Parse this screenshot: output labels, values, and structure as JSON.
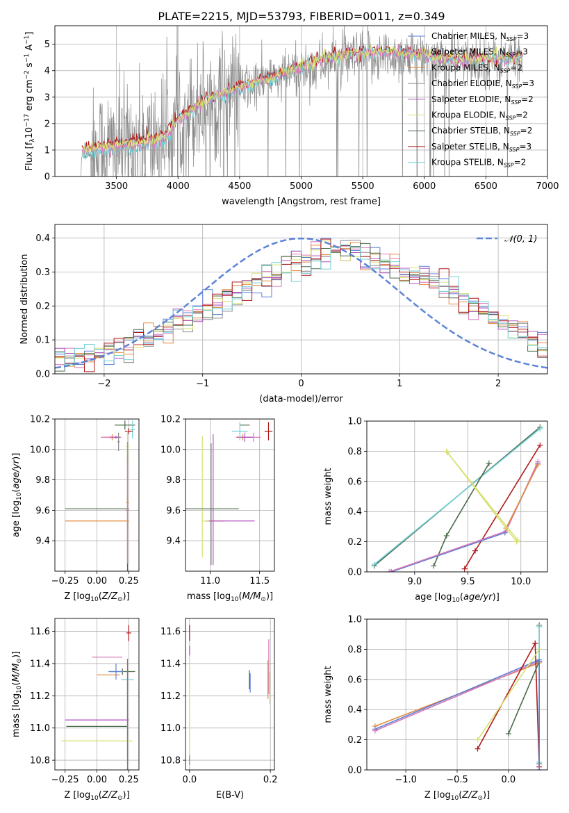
{
  "figure": {
    "title": "PLATE=2215, MJD=53793, FIBERID=0011, z=0.349"
  },
  "palette": {
    "Chabrier MILES": "#5b7fd6",
    "Salpeter MILES": "#d878b8",
    "Kroupa MILES": "#e08a3c",
    "Chabrier ELODIE": "#8a8a8a",
    "Salpeter ELODIE": "#b050c0",
    "Kroupa ELODIE": "#d8e070",
    "Chabrier STELIB": "#4a6a4a",
    "Salpeter STELIB": "#b01818",
    "Kroupa STELIB": "#70d0d8",
    "normal_curve": "#5b84d6"
  },
  "chart_data": [
    {
      "id": "spectrum",
      "type": "line",
      "title": "PLATE=2215, MJD=53793, FIBERID=0011, z=0.349",
      "xlabel": "wavelength [Angstrom, rest frame]",
      "ylabel": "Flux [f_λ 10^-17 erg cm^-2 s^-1 A^-1]",
      "xlim": [
        3000,
        7000
      ],
      "ylim": [
        0,
        5.7
      ],
      "xticks": [
        3500,
        4000,
        4500,
        5000,
        5500,
        6000,
        6500,
        7000
      ],
      "yticks": [
        0,
        1,
        2,
        3,
        4,
        5
      ],
      "legend_position": "top-right",
      "legend": [
        {
          "label": "Chabrier MILES, N",
          "sub": "SSP",
          "tail": "=3"
        },
        {
          "label": "Salpeter MILES, N",
          "sub": "SSP",
          "tail": "=3"
        },
        {
          "label": "Kroupa MILES, N",
          "sub": "SSP",
          "tail": "=2"
        },
        {
          "label": "Chabrier ELODIE, N",
          "sub": "SSP",
          "tail": "=3"
        },
        {
          "label": "Salpeter ELODIE, N",
          "sub": "SSP",
          "tail": "=2"
        },
        {
          "label": "Kroupa ELODIE, N",
          "sub": "SSP",
          "tail": "=2"
        },
        {
          "label": "Chabrier STELIB, N",
          "sub": "SSP",
          "tail": "=2"
        },
        {
          "label": "Salpeter STELIB, N",
          "sub": "SSP",
          "tail": "=3"
        },
        {
          "label": "Kroupa STELIB, N",
          "sub": "SSP",
          "tail": "=2"
        }
      ],
      "data_series": {
        "name": "observed spectrum",
        "x_range": [
          3210,
          6800
        ],
        "anchors": [
          [
            3210,
            0.0
          ],
          [
            3220,
            0.8
          ],
          [
            3400,
            1.05
          ],
          [
            3700,
            1.25
          ],
          [
            3850,
            1.4
          ],
          [
            3950,
            1.9
          ],
          [
            4000,
            2.2
          ],
          [
            4200,
            2.7
          ],
          [
            4500,
            3.3
          ],
          [
            4800,
            3.7
          ],
          [
            5000,
            4.0
          ],
          [
            5200,
            4.3
          ],
          [
            5500,
            4.5
          ],
          [
            5800,
            4.6
          ],
          [
            6000,
            4.5
          ],
          [
            6300,
            4.35
          ],
          [
            6600,
            4.4
          ],
          [
            6800,
            4.45
          ]
        ],
        "noise_sigma_blue": 1.2,
        "noise_sigma_red": 0.5
      },
      "model_series": {
        "names": [
          "Salpeter STELIB",
          "Kroupa STELIB",
          "Salpeter MILES",
          "Kroupa ELODIE"
        ],
        "x_range": [
          3220,
          6800
        ],
        "anchors": [
          [
            3220,
            0.85
          ],
          [
            3400,
            1.0
          ],
          [
            3600,
            1.1
          ],
          [
            3800,
            1.25
          ],
          [
            3900,
            1.4
          ],
          [
            4000,
            2.1
          ],
          [
            4200,
            2.75
          ],
          [
            4500,
            3.35
          ],
          [
            4800,
            3.75
          ],
          [
            5000,
            4.1
          ],
          [
            5200,
            4.45
          ],
          [
            5400,
            4.6
          ],
          [
            5700,
            4.7
          ],
          [
            6000,
            4.55
          ],
          [
            6300,
            4.35
          ],
          [
            6600,
            4.4
          ],
          [
            6800,
            4.45
          ]
        ],
        "offsets": [
          0.25,
          0.0,
          0.05,
          0.15
        ]
      }
    },
    {
      "id": "normed-distribution",
      "type": "line",
      "xlabel": "(data-model)/error",
      "ylabel": "Normed distribution",
      "xlim": [
        -2.5,
        2.5
      ],
      "ylim": [
        0,
        0.44
      ],
      "xticks": [
        -2,
        -1,
        0,
        1,
        2
      ],
      "yticks": [
        0.0,
        0.1,
        0.2,
        0.3,
        0.4
      ],
      "legend_position": "top-right",
      "legend": [
        {
          "label": "𝒩(0, 1)"
        }
      ],
      "bin_width": 0.1,
      "bin_start": -2.5,
      "histogram_base": [
        0.04,
        0.04,
        0.05,
        0.05,
        0.06,
        0.07,
        0.07,
        0.09,
        0.1,
        0.1,
        0.12,
        0.13,
        0.15,
        0.16,
        0.18,
        0.19,
        0.2,
        0.22,
        0.24,
        0.25,
        0.27,
        0.28,
        0.3,
        0.32,
        0.34,
        0.33,
        0.35,
        0.36,
        0.37,
        0.37,
        0.36,
        0.35,
        0.34,
        0.33,
        0.32,
        0.3,
        0.3,
        0.28,
        0.27,
        0.26,
        0.24,
        0.22,
        0.21,
        0.19,
        0.17,
        0.15,
        0.13,
        0.12,
        0.1,
        0.09
      ]
    },
    {
      "id": "age-vs-Z",
      "type": "scatter",
      "xlabel": "Z [log10(Z/Z⊙)]",
      "ylabel": "age [log10(age/yr)]",
      "xlim": [
        -0.33,
        0.33
      ],
      "ylim": [
        9.2,
        10.2
      ],
      "xticks": [
        -0.25,
        0.0,
        0.25
      ],
      "xtick_labels": [
        "−0.25",
        "0.00",
        "0.25"
      ],
      "yticks": [
        9.4,
        9.6,
        9.8,
        10.0,
        10.2
      ],
      "points": [
        {
          "s": "Chabrier STELIB",
          "x": 0.22,
          "y": 10.16,
          "xe": 0.08,
          "ye": 0.03
        },
        {
          "s": "Kroupa STELIB",
          "x": 0.28,
          "y": 10.13,
          "xe": 0.02,
          "ye": 0.06
        },
        {
          "s": "Salpeter STELIB",
          "x": 0.25,
          "y": 10.12,
          "xe": 0.03,
          "ye": 0.02
        },
        {
          "s": "Kroupa MILES",
          "x": 0.12,
          "y": 10.08,
          "xe": 0.07,
          "ye": 0.02
        },
        {
          "s": "Salpeter MILES",
          "x": 0.11,
          "y": 10.08,
          "xe": 0.08,
          "ye": 0.01
        },
        {
          "s": "Salpeter ELODIE",
          "x": 0.15,
          "y": 10.08,
          "xe": 0.03,
          "ye": 0.01
        },
        {
          "s": "Chabrier ELODIE",
          "x": 0.17,
          "y": 10.05,
          "xe": 0.01,
          "ye": 0.06
        },
        {
          "s": "Kroupa ELODIE",
          "x": 0.24,
          "y": 10.02,
          "xe": 0.01,
          "ye": 0.1
        },
        {
          "s": "Chabrier STELIB",
          "x": 0.0,
          "y": 9.61,
          "xe": 0.25,
          "ye": 0.0
        },
        {
          "s": "Chabrier STELIB",
          "x": 0.24,
          "y": 9.6,
          "xe": 0.01,
          "ye": 0.4
        },
        {
          "s": "Kroupa MILES",
          "x": 0.0,
          "y": 9.53,
          "xe": 0.25,
          "ye": 0.0
        },
        {
          "s": "Salpeter MILES",
          "x": 0.24,
          "y": 9.6,
          "xe": 0.01,
          "ye": 0.35
        },
        {
          "s": "Kroupa MILES",
          "x": 0.24,
          "y": 9.65,
          "xe": 0.01,
          "ye": 0.4
        }
      ]
    },
    {
      "id": "age-vs-mass",
      "type": "scatter",
      "xlabel": "mass [log10(M/M⊙)]",
      "xlim": [
        10.75,
        11.65
      ],
      "ylim": [
        9.2,
        10.2
      ],
      "xticks": [
        11.0,
        11.5
      ],
      "xtick_labels": [
        "11.0",
        "11.5"
      ],
      "yticks": [
        9.4,
        9.6,
        9.8,
        10.0,
        10.2
      ],
      "points": [
        {
          "s": "Chabrier STELIB",
          "x": 11.35,
          "y": 10.16,
          "xe": 0.05,
          "ye": 0.0
        },
        {
          "s": "Salpeter STELIB",
          "x": 11.59,
          "y": 10.12,
          "xe": 0.04,
          "ye": 0.06
        },
        {
          "s": "Kroupa MILES",
          "x": 11.33,
          "y": 10.08,
          "xe": 0.07,
          "ye": 0.02
        },
        {
          "s": "Salpeter MILES",
          "x": 11.44,
          "y": 10.08,
          "xe": 0.07,
          "ye": 0.03
        },
        {
          "s": "Salpeter ELODIE",
          "x": 11.35,
          "y": 10.08,
          "xe": 0.08,
          "ye": 0.03
        },
        {
          "s": "Kroupa STELIB",
          "x": 11.3,
          "y": 10.12,
          "xe": 0.08,
          "ye": 0.06
        },
        {
          "s": "Kroupa ELODIE",
          "x": 10.92,
          "y": 9.69,
          "xe": 0.0,
          "ye": 0.4
        },
        {
          "s": "Salpeter ELODIE",
          "x": 11.03,
          "y": 9.67,
          "xe": 0.0,
          "ye": 0.43
        },
        {
          "s": "Chabrier ELODIE",
          "x": 11.01,
          "y": 9.64,
          "xe": 0.0,
          "ye": 0.4
        },
        {
          "s": "Chabrier STELIB",
          "x": 11.01,
          "y": 9.61,
          "xe": 0.28,
          "ye": 0.0
        },
        {
          "s": "Kroupa MILES",
          "x": 11.05,
          "y": 9.53,
          "xe": 0.1,
          "ye": 0.0
        },
        {
          "s": "Salpeter ELODIE",
          "x": 11.2,
          "y": 9.53,
          "xe": 0.25,
          "ye": 0.0
        },
        {
          "s": "Kroupa ELODIE",
          "x": 10.95,
          "y": 9.53,
          "xe": 0.04,
          "ye": 0.0
        }
      ]
    },
    {
      "id": "mass-weight-vs-age",
      "type": "line",
      "xlabel": "age [log10(age/yr)]",
      "ylabel": "mass weight",
      "xlim": [
        8.55,
        10.25
      ],
      "ylim": [
        0,
        1
      ],
      "xticks": [
        9.0,
        9.5,
        10.0
      ],
      "xtick_labels": [
        "9.0",
        "9.5",
        "10.0"
      ],
      "yticks": [
        0.0,
        0.2,
        0.4,
        0.6,
        0.8,
        1.0
      ],
      "series": [
        {
          "name": "Chabrier STELIB",
          "x": [
            8.62,
            10.18
          ],
          "y": [
            0.04,
            0.96
          ]
        },
        {
          "name": "Kroupa STELIB",
          "x": [
            8.62,
            10.18
          ],
          "y": [
            0.05,
            0.95
          ]
        },
        {
          "name": "Chabrier STELIB",
          "x": [
            9.18,
            9.3,
            9.7
          ],
          "y": [
            0.04,
            0.24,
            0.72
          ]
        },
        {
          "name": "Salpeter STELIB",
          "x": [
            9.47,
            9.57,
            10.18
          ],
          "y": [
            0.02,
            0.14,
            0.84
          ]
        },
        {
          "name": "Chabrier MILES",
          "x": [
            8.78,
            9.85,
            10.16
          ],
          "y": [
            0.0,
            0.26,
            0.72
          ]
        },
        {
          "name": "Salpeter MILES",
          "x": [
            8.76,
            9.86,
            10.16
          ],
          "y": [
            0.0,
            0.27,
            0.73
          ]
        },
        {
          "name": "Kroupa MILES",
          "x": [
            9.86,
            10.16
          ],
          "y": [
            0.29,
            0.71
          ]
        },
        {
          "name": "Kroupa ELODIE",
          "x": [
            9.3,
            9.96
          ],
          "y": [
            0.8,
            0.2
          ]
        },
        {
          "name": "Kroupa ELODIE",
          "x": [
            9.31,
            9.97
          ],
          "y": [
            0.79,
            0.21
          ]
        }
      ]
    },
    {
      "id": "mass-vs-Z",
      "type": "scatter",
      "xlabel": "Z [log10(Z/Z⊙)]",
      "ylabel": "mass [log10(M/M⊙)]",
      "xlim": [
        -0.33,
        0.33
      ],
      "ylim": [
        10.74,
        11.68
      ],
      "xticks": [
        -0.25,
        0.0,
        0.25
      ],
      "xtick_labels": [
        "−0.25",
        "0.00",
        "0.25"
      ],
      "yticks": [
        10.8,
        11.0,
        11.2,
        11.4,
        11.6
      ],
      "points": [
        {
          "s": "Salpeter STELIB",
          "x": 0.25,
          "y": 11.59,
          "xe": 0.02,
          "ye": 0.05
        },
        {
          "s": "Salpeter MILES",
          "x": 0.08,
          "y": 11.44,
          "xe": 0.12,
          "ye": 0.0
        },
        {
          "s": "Chabrier STELIB",
          "x": 0.2,
          "y": 11.35,
          "xe": 0.1,
          "ye": 0.02
        },
        {
          "s": "Chabrier MILES",
          "x": 0.15,
          "y": 11.35,
          "xe": 0.06,
          "ye": 0.05
        },
        {
          "s": "Kroupa MILES",
          "x": 0.09,
          "y": 11.33,
          "xe": 0.09,
          "ye": 0.0
        },
        {
          "s": "Kroupa STELIB",
          "x": 0.24,
          "y": 11.3,
          "xe": 0.05,
          "ye": 0.05
        },
        {
          "s": "Salpeter ELODIE",
          "x": 0.0,
          "y": 11.05,
          "xe": 0.25,
          "ye": 0.0
        },
        {
          "s": "Chabrier STELIB",
          "x": 0.0,
          "y": 11.01,
          "xe": 0.24,
          "ye": 0.0
        },
        {
          "s": "Kroupa ELODIE",
          "x": 0.0,
          "y": 10.92,
          "xe": 0.28,
          "ye": 0.0
        },
        {
          "s": "Chabrier ELODIE",
          "x": 0.24,
          "y": 11.03,
          "xe": 0.0,
          "ye": 0.25
        },
        {
          "s": "Kroupa ELODIE",
          "x": 0.24,
          "y": 11.1,
          "xe": 0.0,
          "ye": 0.3
        },
        {
          "s": "Salpeter ELODIE",
          "x": 0.24,
          "y": 11.08,
          "xe": 0.0,
          "ye": 0.35
        }
      ]
    },
    {
      "id": "mass-vs-ebv",
      "type": "scatter",
      "xlabel": "E(B-V)",
      "xlim": [
        -0.01,
        0.21
      ],
      "ylim": [
        10.74,
        11.68
      ],
      "xticks": [
        0.0,
        0.2
      ],
      "xtick_labels": [
        "0.0",
        "0.2"
      ],
      "yticks": [
        10.8,
        11.0,
        11.2,
        11.4,
        11.6
      ],
      "points": [
        {
          "s": "Salpeter STELIB",
          "x": 0.0,
          "y": 11.59,
          "xe": 0.0,
          "ye": 0.05
        },
        {
          "s": "Salpeter ELODIE",
          "x": 0.0,
          "y": 11.48,
          "xe": 0.0,
          "ye": 0.03
        },
        {
          "s": "Kroupa ELODIE",
          "x": 0.0,
          "y": 11.25,
          "xe": 0.0,
          "ye": 0.15
        },
        {
          "s": "Kroupa ELODIE",
          "x": 0.0,
          "y": 10.95,
          "xe": 0.0,
          "ye": 0.18
        },
        {
          "s": "Chabrier ELODIE",
          "x": 0.0,
          "y": 10.8,
          "xe": 0.0,
          "ye": 0.03
        },
        {
          "s": "Chabrier STELIB",
          "x": 0.148,
          "y": 11.3,
          "xe": 0.0,
          "ye": 0.06
        },
        {
          "s": "Chabrier MILES",
          "x": 0.15,
          "y": 11.28,
          "xe": 0.0,
          "ye": 0.06
        },
        {
          "s": "Salpeter MILES",
          "x": 0.196,
          "y": 11.38,
          "xe": 0.0,
          "ye": 0.17
        },
        {
          "s": "Kroupa MILES",
          "x": 0.194,
          "y": 11.3,
          "xe": 0.0,
          "ye": 0.12
        },
        {
          "s": "Kroupa ELODIE",
          "x": 0.198,
          "y": 11.25,
          "xe": 0.0,
          "ye": 0.1
        }
      ]
    },
    {
      "id": "mass-weight-vs-Z",
      "type": "line",
      "xlabel": "Z [log10(Z/Z⊙)]",
      "ylabel": "mass weight",
      "xlim": [
        -1.38,
        0.38
      ],
      "ylim": [
        0,
        1
      ],
      "xticks": [
        -1.0,
        -0.5,
        0.0
      ],
      "xtick_labels": [
        "−1.0",
        "−0.5",
        "0.0"
      ],
      "yticks": [
        0.0,
        0.2,
        0.4,
        0.6,
        0.8,
        1.0
      ],
      "series": [
        {
          "name": "Kroupa MILES",
          "x": [
            -1.3,
            0.3
          ],
          "y": [
            0.29,
            0.71
          ]
        },
        {
          "name": "Chabrier MILES",
          "x": [
            -1.3,
            0.3
          ],
          "y": [
            0.27,
            0.73
          ]
        },
        {
          "name": "Salpeter MILES",
          "x": [
            -1.3,
            0.3
          ],
          "y": [
            0.26,
            0.72
          ]
        },
        {
          "name": "Salpeter STELIB",
          "x": [
            -0.3,
            0.26
          ],
          "y": [
            0.14,
            0.84
          ]
        },
        {
          "name": "Salpeter STELIB",
          "x": [
            0.26,
            0.3
          ],
          "y": [
            0.84,
            0.02
          ]
        },
        {
          "name": "Kroupa ELODIE",
          "x": [
            -0.3,
            0.3
          ],
          "y": [
            0.2,
            0.8
          ]
        },
        {
          "name": "Chabrier STELIB",
          "x": [
            0.0,
            0.3
          ],
          "y": [
            0.24,
            0.72
          ]
        },
        {
          "name": "Chabrier STELIB",
          "x": [
            0.3,
            0.3
          ],
          "y": [
            0.04,
            0.96
          ]
        },
        {
          "name": "Kroupa STELIB",
          "x": [
            0.3,
            0.3
          ],
          "y": [
            0.05,
            0.95
          ]
        },
        {
          "name": "Chabrier MILES",
          "x": [
            0.3,
            0.3
          ],
          "y": [
            0.0,
            0.72
          ]
        }
      ]
    }
  ]
}
